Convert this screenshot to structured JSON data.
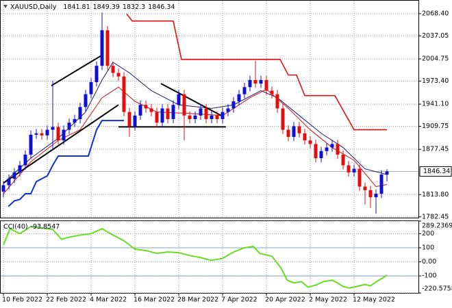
{
  "chart_data": {
    "type": "candlestick",
    "title": "XAUUSD,Daily",
    "categories": [
      "10 Feb 2022",
      null,
      null,
      null,
      null,
      null,
      null,
      null,
      "22 Feb 2022",
      null,
      null,
      null,
      null,
      null,
      null,
      null,
      "4 Mar 2022",
      null,
      null,
      null,
      null,
      null,
      null,
      null,
      "16 Mar 2022",
      null,
      null,
      null,
      null,
      null,
      null,
      null,
      "28 Mar 2022",
      null,
      null,
      null,
      null,
      null,
      null,
      null,
      "7 Apr 2022",
      null,
      null,
      null,
      null,
      null,
      null,
      null,
      "20 Apr 2022",
      null,
      null,
      null,
      null,
      null,
      null,
      null,
      "2 May 2022",
      null,
      null,
      null,
      null,
      null,
      null,
      null,
      "12 May 2022",
      null,
      null,
      null,
      null,
      null,
      null
    ],
    "open": [
      1818,
      1827,
      1836,
      1845,
      1855,
      1870,
      1898,
      1900,
      1897,
      1905,
      1909,
      1890,
      1905,
      1915,
      1920,
      1937,
      1955,
      1972,
      1995,
      2045,
      1995,
      1985,
      1980,
      1930,
      1910,
      1925,
      1940,
      1935,
      1930,
      1915,
      1935,
      1920,
      1940,
      1955,
      1925,
      1920,
      1925,
      1935,
      1920,
      1925,
      1920,
      1930,
      1935,
      1945,
      1955,
      1965,
      1975,
      1970,
      1975,
      1960,
      1955,
      1935,
      1905,
      1895,
      1910,
      1900,
      1890,
      1885,
      1865,
      1875,
      1880,
      1885,
      1870,
      1855,
      1845,
      1850,
      1825,
      1820,
      1810,
      1815,
      1841.81
    ],
    "high": [
      1833,
      1842,
      1851,
      1861,
      1876,
      1904,
      1906,
      1906,
      1911,
      1974,
      1915,
      1911,
      1921,
      1926,
      1943,
      1961,
      1978,
      2001,
      2070,
      2051,
      2001,
      1991,
      1986,
      1936,
      1931,
      1946,
      1946,
      1941,
      1936,
      1941,
      1941,
      1946,
      1961,
      1961,
      1931,
      1931,
      1941,
      1941,
      1931,
      1931,
      1936,
      1941,
      1951,
      1961,
      1971,
      1981,
      2002,
      1981,
      1981,
      1966,
      1961,
      1941,
      1911,
      1916,
      1916,
      1906,
      1896,
      1891,
      1881,
      1886,
      1891,
      1891,
      1876,
      1861,
      1856,
      1856,
      1831,
      1826,
      1821,
      1848,
      1849.39
    ],
    "low": [
      1810,
      1821,
      1830,
      1839,
      1849,
      1864,
      1892,
      1891,
      1891,
      1878,
      1884,
      1884,
      1899,
      1909,
      1914,
      1931,
      1949,
      1966,
      1989,
      1989,
      1979,
      1974,
      1924,
      1895,
      1904,
      1919,
      1929,
      1924,
      1909,
      1909,
      1914,
      1914,
      1934,
      1890,
      1914,
      1914,
      1919,
      1914,
      1914,
      1914,
      1914,
      1924,
      1929,
      1939,
      1949,
      1959,
      1964,
      1964,
      1954,
      1949,
      1929,
      1899,
      1889,
      1889,
      1894,
      1884,
      1879,
      1859,
      1859,
      1869,
      1874,
      1864,
      1849,
      1839,
      1839,
      1819,
      1800,
      1795,
      1787,
      1809,
      1832.3
    ],
    "close": [
      1827,
      1836,
      1845,
      1855,
      1870,
      1898,
      1900,
      1897,
      1905,
      1909,
      1890,
      1905,
      1915,
      1920,
      1937,
      1955,
      1972,
      1995,
      2045,
      1995,
      1985,
      1980,
      1930,
      1910,
      1925,
      1940,
      1935,
      1930,
      1915,
      1935,
      1920,
      1940,
      1955,
      1925,
      1920,
      1925,
      1935,
      1920,
      1925,
      1920,
      1930,
      1935,
      1945,
      1955,
      1965,
      1975,
      1970,
      1975,
      1960,
      1955,
      1935,
      1905,
      1895,
      1910,
      1900,
      1890,
      1885,
      1865,
      1875,
      1880,
      1885,
      1870,
      1855,
      1845,
      1850,
      1825,
      1820,
      1810,
      1815,
      1842,
      1846.34
    ],
    "up_color": "#1010d0",
    "down_color": "#e01010",
    "ylim": [
      1781.3,
      2084.7
    ],
    "yticks": [
      {
        "value": 2068.4,
        "label": "2068.40"
      },
      2037.05,
      2004.75,
      {
        "value": 1973.4,
        "label": "1973.40"
      },
      {
        "value": 1941.1,
        "label": "1941.10"
      },
      1909.75,
      1877.45,
      {
        "value": 1813.8,
        "label": "1813.80"
      },
      1782.45
    ],
    "grid": true,
    "overlays": [
      {
        "color": "#e01010",
        "width": 1.6,
        "x": [
          22.5,
          23.5,
          31,
          32.5,
          50.5,
          52,
          53.5,
          55,
          60.5,
          64,
          70
        ],
        "values": [
          2068,
          2058,
          2058,
          2004,
          2004,
          1982,
          1982,
          1953,
          1953,
          1905,
          1905
        ]
      },
      {
        "color": "#1030d0",
        "width": 2,
        "x": [
          0.9,
          2,
          3,
          4,
          5,
          6,
          8,
          9,
          10,
          15.5,
          17,
          18,
          22
        ],
        "values": [
          1797,
          1805,
          1807,
          1815,
          1815,
          1832,
          1840,
          1855,
          1868,
          1868,
          1905,
          1918,
          1918
        ]
      },
      {
        "color": "#1a1a6e",
        "width": 1,
        "x": [
          0,
          5,
          10,
          15,
          18,
          20,
          23,
          27,
          32,
          38,
          42,
          47,
          50,
          54,
          58,
          62,
          66,
          70
        ],
        "values": [
          1830,
          1865,
          1893,
          1930,
          1975,
          2000,
          1985,
          1960,
          1940,
          1935,
          1940,
          1960,
          1950,
          1925,
          1900,
          1880,
          1850,
          1842
        ]
      },
      {
        "color": "#d01010",
        "width": 1,
        "x": [
          0,
          5,
          10,
          14,
          18,
          21,
          24,
          28,
          34,
          40,
          45,
          48,
          52,
          56,
          60,
          64,
          68,
          70
        ],
        "values": [
          1815,
          1860,
          1890,
          1905,
          1950,
          1965,
          1945,
          1930,
          1928,
          1925,
          1950,
          1962,
          1935,
          1905,
          1880,
          1862,
          1825,
          1828
        ]
      },
      {
        "color": "#000000",
        "width": 2,
        "x": [
          8.75,
          18
        ],
        "values": [
          1967,
          2010
        ]
      },
      {
        "color": "#000000",
        "width": 2,
        "x": [
          0,
          21
        ],
        "values": [
          1830,
          1940
        ]
      },
      {
        "color": "#000000",
        "width": 2,
        "x": [
          28.75,
          40
        ],
        "values": [
          1970,
          1924
        ]
      },
      {
        "color": "#000000",
        "width": 2,
        "x": [
          21,
          40.6
        ],
        "values": [
          1909,
          1909
        ]
      }
    ],
    "indicator": {
      "type": "line",
      "title": "CCI(40)",
      "color": "#66dd22",
      "x": [
        0,
        1.2,
        3,
        5,
        7,
        9,
        10.6,
        12,
        14,
        16,
        18,
        20,
        22,
        24,
        26,
        28,
        30,
        32,
        34,
        36,
        38,
        40,
        42,
        44,
        45.6,
        46.8,
        49,
        50.6,
        51.8,
        53,
        54.4,
        55.6,
        57,
        58.4,
        60,
        61,
        62,
        63.1,
        64.5,
        66,
        67,
        68.1,
        69.4,
        70
      ],
      "values": [
        120,
        235,
        200,
        250,
        240,
        230,
        160,
        175,
        190,
        200,
        235,
        190,
        150,
        90,
        80,
        60,
        70,
        65,
        45,
        30,
        10,
        25,
        70,
        100,
        110,
        60,
        40,
        -40,
        -130,
        -150,
        -140,
        -180,
        -165,
        -140,
        -130,
        -150,
        -175,
        -185,
        -175,
        -160,
        -170,
        -140,
        -110,
        -93.8547
      ],
      "ylim": [
        -220.5758,
        289.2369
      ],
      "yticks": [
        289.2369,
        200,
        100,
        {
          "value": 0,
          "label": "0.00"
        },
        -100,
        -220.5758
      ],
      "levels": [
        100,
        -100
      ],
      "level_color": "#7fa7c9"
    }
  }
}
